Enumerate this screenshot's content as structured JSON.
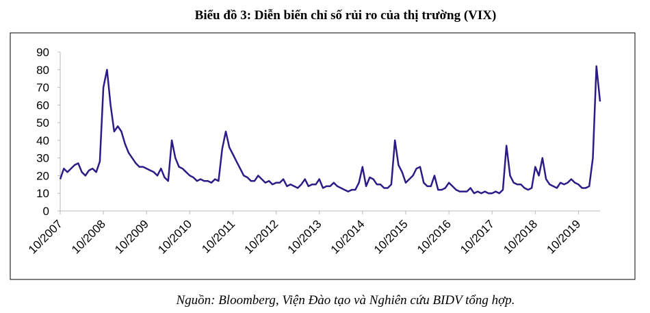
{
  "chart_data": {
    "type": "line",
    "title": "Biểu đồ 3: Diễn biến chỉ số rủi ro của thị trường (VIX)",
    "source": "Nguồn: Bloomberg, Viện Đào tạo và Nghiên cứu BIDV tổng hợp.",
    "color": "#2e1a87",
    "x": [
      "10/2007",
      "11/2007",
      "12/2007",
      "01/2008",
      "02/2008",
      "03/2008",
      "04/2008",
      "05/2008",
      "06/2008",
      "07/2008",
      "08/2008",
      "09/2008",
      "10/2008",
      "11/2008",
      "12/2008",
      "01/2009",
      "02/2009",
      "03/2009",
      "04/2009",
      "05/2009",
      "06/2009",
      "07/2009",
      "08/2009",
      "09/2009",
      "10/2009",
      "11/2009",
      "12/2009",
      "01/2010",
      "02/2010",
      "03/2010",
      "04/2010",
      "05/2010",
      "06/2010",
      "07/2010",
      "08/2010",
      "09/2010",
      "10/2010",
      "11/2010",
      "12/2010",
      "01/2011",
      "02/2011",
      "03/2011",
      "04/2011",
      "05/2011",
      "06/2011",
      "07/2011",
      "08/2011",
      "09/2011",
      "10/2011",
      "11/2011",
      "12/2011",
      "01/2012",
      "02/2012",
      "03/2012",
      "04/2012",
      "05/2012",
      "06/2012",
      "07/2012",
      "08/2012",
      "09/2012",
      "10/2012",
      "11/2012",
      "12/2012",
      "01/2013",
      "02/2013",
      "03/2013",
      "04/2013",
      "05/2013",
      "06/2013",
      "07/2013",
      "08/2013",
      "09/2013",
      "10/2013",
      "11/2013",
      "12/2013",
      "01/2014",
      "02/2014",
      "03/2014",
      "04/2014",
      "05/2014",
      "06/2014",
      "07/2014",
      "08/2014",
      "09/2014",
      "10/2014",
      "11/2014",
      "12/2014",
      "01/2015",
      "02/2015",
      "03/2015",
      "04/2015",
      "05/2015",
      "06/2015",
      "07/2015",
      "08/2015",
      "09/2015",
      "10/2015",
      "11/2015",
      "12/2015",
      "01/2016",
      "02/2016",
      "03/2016",
      "04/2016",
      "05/2016",
      "06/2016",
      "07/2016",
      "08/2016",
      "09/2016",
      "10/2016",
      "11/2016",
      "12/2016",
      "01/2017",
      "02/2017",
      "03/2017",
      "04/2017",
      "05/2017",
      "06/2017",
      "07/2017",
      "08/2017",
      "09/2017",
      "10/2017",
      "11/2017",
      "12/2017",
      "01/2018",
      "02/2018",
      "03/2018",
      "04/2018",
      "05/2018",
      "06/2018",
      "07/2018",
      "08/2018",
      "09/2018",
      "10/2018",
      "11/2018",
      "12/2018",
      "01/2019",
      "02/2019",
      "03/2019",
      "04/2019",
      "05/2019",
      "06/2019",
      "07/2019",
      "08/2019",
      "09/2019",
      "10/2019",
      "11/2019",
      "12/2019",
      "01/2020",
      "02/2020",
      "03/2020",
      "04/2020"
    ],
    "values": [
      18,
      24,
      22,
      24,
      26,
      27,
      22,
      20,
      23,
      24,
      22,
      28,
      70,
      80,
      60,
      45,
      48,
      45,
      38,
      33,
      30,
      27,
      25,
      25,
      24,
      23,
      22,
      20,
      24,
      19,
      17,
      40,
      30,
      25,
      24,
      22,
      20,
      19,
      17,
      18,
      17,
      17,
      16,
      18,
      17,
      35,
      45,
      36,
      32,
      28,
      24,
      20,
      19,
      17,
      17,
      20,
      18,
      16,
      17,
      15,
      16,
      16,
      18,
      14,
      15,
      14,
      13,
      15,
      18,
      14,
      15,
      15,
      18,
      13,
      14,
      14,
      16,
      14,
      13,
      12,
      11,
      12,
      12,
      16,
      25,
      14,
      19,
      18,
      15,
      15,
      13,
      13,
      15,
      40,
      26,
      22,
      16,
      18,
      20,
      24,
      25,
      16,
      14,
      14,
      20,
      12,
      12,
      13,
      16,
      14,
      12,
      11,
      11,
      11,
      13,
      10,
      11,
      10,
      11,
      10,
      10,
      11,
      10,
      12,
      37,
      20,
      16,
      15,
      15,
      13,
      12,
      13,
      25,
      20,
      30,
      18,
      15,
      14,
      13,
      16,
      15,
      16,
      18,
      16,
      15,
      13,
      13,
      14,
      30,
      82,
      62
    ],
    "ylim": [
      0,
      90
    ],
    "yticks": [
      0,
      10,
      20,
      30,
      40,
      50,
      60,
      70,
      80,
      90
    ],
    "xticks": [
      "10/2007",
      "10/2008",
      "10/2009",
      "10/2010",
      "10/2011",
      "10/2012",
      "10/2013",
      "10/2014",
      "10/2015",
      "10/2016",
      "10/2017",
      "10/2018",
      "10/2019"
    ]
  }
}
